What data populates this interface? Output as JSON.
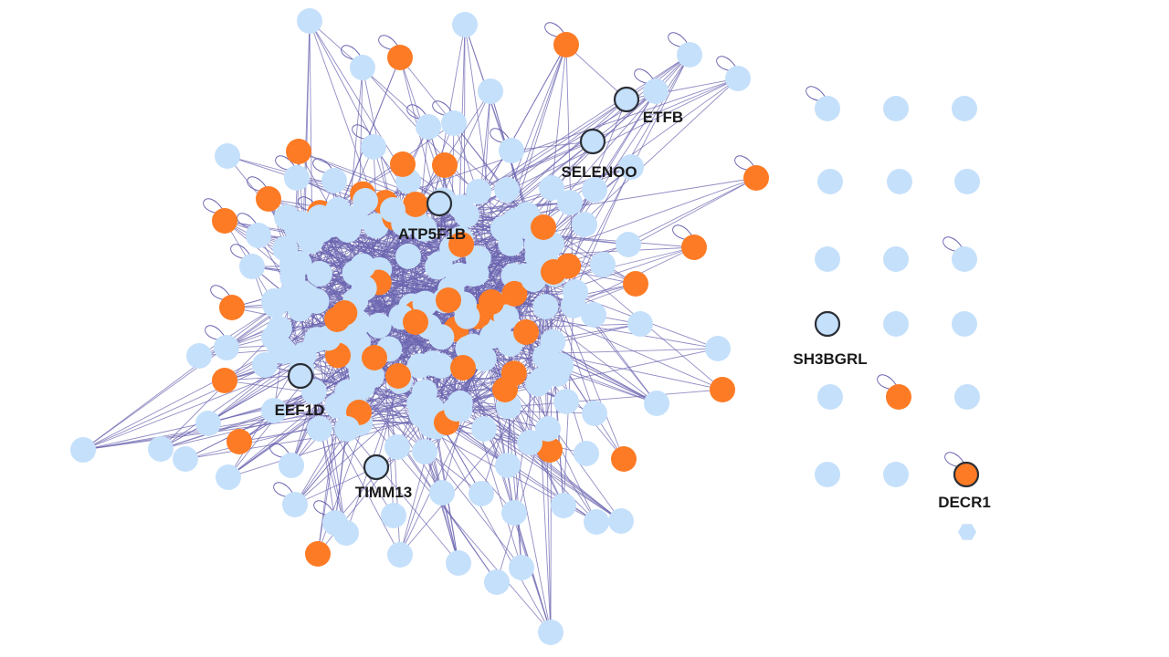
{
  "colors": {
    "edge": "#6b66b0",
    "node_default": "#c5e0fb",
    "node_highlight": "#fd7b25",
    "node_outline": "#2b2f36",
    "label": "#1a1a1a"
  },
  "node_categories": [
    "default",
    "highlight"
  ],
  "labeled_nodes": [
    {
      "id": "etfb",
      "label": "ETFB",
      "category": "default"
    },
    {
      "id": "selenoo",
      "label": "SELENOO",
      "category": "default"
    },
    {
      "id": "atp5f1b",
      "label": "ATP5F1B",
      "category": "default"
    },
    {
      "id": "eef1d",
      "label": "EEF1D",
      "category": "default"
    },
    {
      "id": "timm13",
      "label": "TIMM13",
      "category": "default"
    },
    {
      "id": "sh3bgrl",
      "label": "SH3BGRL",
      "category": "default"
    },
    {
      "id": "decr1",
      "label": "DECR1",
      "category": "highlight"
    }
  ]
}
